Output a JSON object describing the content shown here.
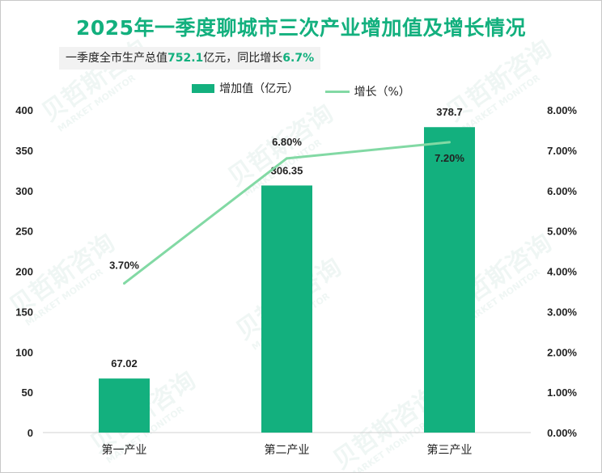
{
  "title": "2025年一季度聊城市三次产业增加值及增长情况",
  "subtitle": {
    "prefix": "一季度全市生产总值",
    "gdp_value": "752.1",
    "middle": "亿元，同比增长",
    "growth_value": "6.7%"
  },
  "watermark": {
    "text": "贝哲斯咨询",
    "sub": "MARKET MONITOR"
  },
  "colors": {
    "bar": "#13b07e",
    "line": "#82d9a4",
    "accent": "#13b07e"
  },
  "chart_data": {
    "type": "bar",
    "categories": [
      "第一产业",
      "第二产业",
      "第三产业"
    ],
    "series": [
      {
        "name": "增加值（亿元）",
        "type": "bar",
        "axis": "left",
        "values": [
          67.02,
          306.35,
          378.7
        ],
        "labels": [
          "67.02",
          "306.35",
          "378.7"
        ]
      },
      {
        "name": "增长（%）",
        "type": "line",
        "axis": "right",
        "values": [
          3.7,
          6.8,
          7.2
        ],
        "labels": [
          "3.70%",
          "6.80%",
          "7.20%"
        ]
      }
    ],
    "y_left": {
      "min": 0,
      "max": 400,
      "step": 50,
      "ticks": [
        "0",
        "50",
        "100",
        "150",
        "200",
        "250",
        "300",
        "350",
        "400"
      ]
    },
    "y_right": {
      "min": 0,
      "max": 8,
      "step": 1,
      "ticks": [
        "0.00%",
        "1.00%",
        "2.00%",
        "3.00%",
        "4.00%",
        "5.00%",
        "6.00%",
        "7.00%",
        "8.00%"
      ]
    },
    "grid": false,
    "legend_position": "top-center"
  }
}
